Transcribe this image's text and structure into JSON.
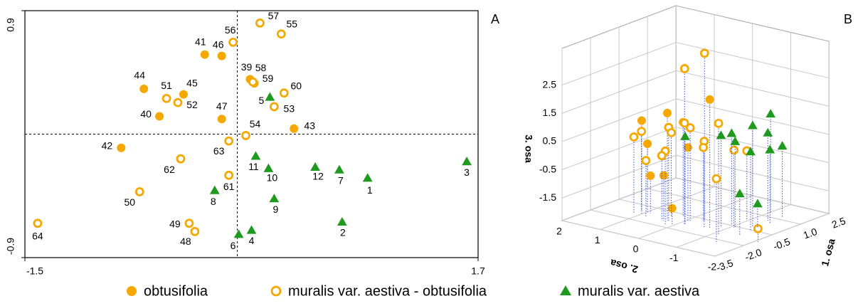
{
  "chart_data": [
    {
      "type": "scatter",
      "panel": "A",
      "xlim": [
        -1.5,
        1.7
      ],
      "ylim": [
        -0.9,
        0.9
      ],
      "xticks": [
        -1.5,
        1.7
      ],
      "yticks": [
        -0.9,
        0.9
      ],
      "series": [
        {
          "name": "obtusifolia",
          "color": "#f5a800",
          "marker": "filled",
          "x": [
            -0.23,
            -0.11,
            -0.66,
            -0.38,
            -0.55,
            -0.11,
            0.09,
            0.12,
            0.4,
            -0.82
          ],
          "values": [
            0.58,
            0.57,
            0.33,
            0.29,
            0.13,
            0.11,
            0.4,
            0.37,
            0.04,
            -0.1
          ],
          "labels": [
            41,
            46,
            44,
            45,
            40,
            47,
            39,
            59,
            43,
            42
          ]
        },
        {
          "name": "muralis var. aestiva - obtusifolia",
          "color": "#f5a800",
          "marker": "hollow",
          "x": [
            0.16,
            0.31,
            -0.03,
            -0.5,
            -0.42,
            0.11,
            0.33,
            0.26,
            0.06,
            -0.06,
            -0.4,
            -0.69,
            -0.06,
            -0.34,
            -0.3,
            -1.41
          ],
          "values": [
            0.81,
            0.73,
            0.67,
            0.26,
            0.23,
            0.38,
            0.3,
            0.2,
            -0.01,
            -0.05,
            -0.18,
            -0.42,
            -0.3,
            -0.65,
            -0.71,
            -0.65
          ],
          "labels": [
            57,
            55,
            56,
            51,
            52,
            58,
            60,
            53,
            54,
            63,
            62,
            50,
            61,
            49,
            48,
            64
          ]
        },
        {
          "name": "muralis var. aestiva",
          "color": "#1e9a1e",
          "marker": "triangle",
          "x": [
            0.23,
            0.13,
            0.22,
            0.55,
            0.72,
            0.92,
            1.62,
            -0.16,
            0.26,
            0.74,
            0.1,
            0.01
          ],
          "values": [
            0.27,
            -0.16,
            -0.25,
            -0.24,
            -0.26,
            -0.32,
            -0.2,
            -0.41,
            -0.47,
            -0.64,
            -0.7,
            -0.73
          ],
          "labels": [
            5,
            11,
            10,
            12,
            7,
            1,
            3,
            8,
            9,
            2,
            4,
            6
          ]
        }
      ]
    },
    {
      "type": "scatter3d",
      "panel": "B",
      "xlabel": "1. osa",
      "ylabel": "2. osa",
      "zlabel": "3. osa",
      "xlim": [
        -3.5,
        2.5
      ],
      "ylim": [
        -2,
        2
      ],
      "zlim": [
        -2.3,
        3.8
      ],
      "xticks": [
        -3.5,
        {
          "value": -2,
          "label": "-2.0"
        },
        -0.5,
        {
          "value": 1,
          "label": "1.0"
        },
        2.5
      ],
      "yticks": [
        -2,
        -1,
        0,
        1,
        2
      ],
      "zticks": [
        -1.5,
        -0.5,
        0.5,
        1.5,
        2.5
      ],
      "series": [
        {
          "color": "#f5a800",
          "marker": "filled",
          "x": [
            -1.28,
            -1.38,
            -1.14,
            -0.75,
            -1.16,
            -0.96,
            -1.1,
            -1.45,
            -1.59
          ],
          "y": [
            1.02,
            0.3,
            -0.69,
            0.2,
            0.93,
            -0.03,
            0.88,
            0.36,
            0.07
          ],
          "z": [
            0.99,
            1.51,
            2.24,
            1.06,
            0.17,
            0.29,
            -0.96,
            -0.7,
            -1.74
          ]
        },
        {
          "color": "#f5a800",
          "marker": "hollow",
          "x": [
            -0.41,
            -0.63,
            -1.43,
            -0.97,
            -1.35,
            -0.99,
            -1.34,
            -0.92,
            -1.25,
            -1.58,
            -0.65,
            0.23,
            -0.65,
            -2.24,
            -1.73,
            -1.49,
            -1.5,
            -1.4
          ],
          "y": [
            0.33,
            -0.3,
            1.15,
            1.18,
            0.28,
            0.39,
            -0.13,
            -0.07,
            -0.6,
            -1.14,
            -1.08,
            -0.98,
            -0.28,
            -1.41,
            0.18,
            0.39,
            0.8,
            -2.08
          ],
          "z": [
            2.83,
            3.63,
            0.41,
            0.48,
            1.0,
            0.69,
            1.28,
            0.99,
            0.76,
            1.65,
            0.45,
            0.17,
            0.29,
            -0.06,
            0.29,
            0.0,
            -0.3,
            -1.83
          ]
        },
        {
          "color": "#1e9a1e",
          "marker": "triangle",
          "x": [
            -1.33,
            -0.91,
            -0.39,
            -0.63,
            -0.27,
            0.65,
            1.32,
            1.25,
            0.38,
            -0.62,
            -1.15,
            -0.17
          ],
          "y": [
            -0.14,
            -0.87,
            -0.89,
            -1.1,
            -1.38,
            -1.32,
            -1.06,
            -1.4,
            -1.51,
            -1.5,
            -1.48,
            -1.46
          ],
          "z": [
            0.81,
            0.97,
            0.92,
            0.76,
            1.32,
            0.81,
            1.23,
            0.22,
            0.34,
            0.52,
            -0.84,
            -1.45
          ]
        }
      ]
    }
  ]
}
